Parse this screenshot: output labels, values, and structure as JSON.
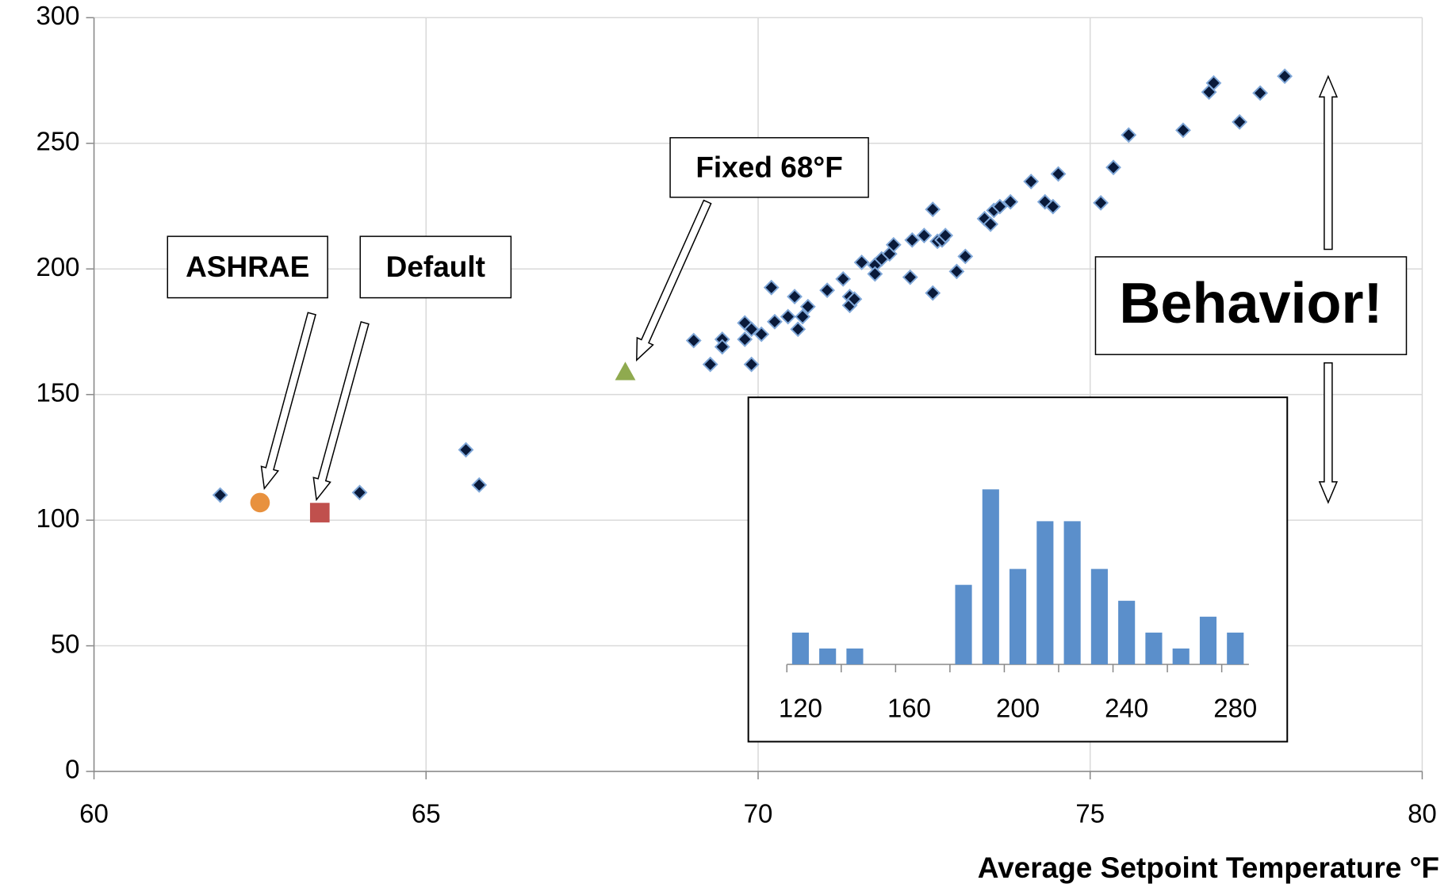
{
  "chart_data": [
    {
      "type": "scatter",
      "x_label": "Average Setpoint Temperature °F",
      "xlim": [
        60,
        80
      ],
      "xticks": [
        60,
        65,
        70,
        75,
        80
      ],
      "ylim": [
        0,
        300
      ],
      "yticks": [
        0,
        50,
        100,
        150,
        200,
        250,
        300
      ],
      "grid": true,
      "annotation": "Behavior!",
      "series": [
        {
          "color": "#0a1a3a",
          "marker": "diamond",
          "x": [
            61.9,
            64.0,
            65.6,
            65.8,
            69.03,
            69.28,
            69.46,
            69.46,
            69.8,
            69.8,
            69.9,
            69.9,
            70.05,
            70.2,
            70.25,
            70.45,
            70.55,
            70.6,
            70.67,
            70.75,
            71.04,
            71.28,
            71.38,
            71.38,
            71.45,
            71.56,
            71.76,
            71.76,
            71.86,
            71.98,
            72.04,
            72.29,
            72.32,
            72.5,
            72.63,
            72.63,
            72.7,
            72.77,
            72.82,
            72.99,
            73.12,
            73.41,
            73.5,
            73.55,
            73.64,
            73.8,
            74.11,
            74.32,
            74.44,
            74.52,
            75.16,
            75.35,
            75.58,
            76.4,
            76.79,
            76.86,
            77.25,
            77.56,
            77.93
          ],
          "y": [
            110,
            111,
            128,
            114,
            171.5,
            162,
            172,
            169,
            178.5,
            172,
            176,
            162,
            174,
            192.6,
            179,
            181,
            189,
            176,
            181,
            185,
            191.5,
            196,
            189,
            185.5,
            188,
            202.6,
            201.5,
            198,
            204,
            206,
            209.6,
            196.7,
            211.5,
            213.3,
            223.7,
            190.4,
            211,
            211.5,
            213.3,
            199,
            205,
            220,
            217.8,
            223.3,
            224.8,
            226.7,
            234.8,
            226.7,
            224.8,
            237.8,
            226.3,
            240.4,
            253.3,
            255.2,
            270.4,
            274,
            258.5,
            270,
            276.7
          ]
        },
        {
          "name": "ASHRAE",
          "color": "#e8913e",
          "marker": "circle",
          "x": [
            62.5
          ],
          "y": [
            107
          ]
        },
        {
          "name": "Default",
          "color": "#c0504d",
          "marker": "square",
          "x": [
            63.4
          ],
          "y": [
            103
          ]
        },
        {
          "name": "Fixed 68°F",
          "color": "#8faa4f",
          "marker": "triangle",
          "x": [
            68.0
          ],
          "y": [
            159
          ]
        }
      ]
    },
    {
      "type": "bar",
      "color": "#5b8fcb",
      "categories": [
        120,
        null,
        null,
        null,
        160,
        null,
        null,
        null,
        200,
        null,
        null,
        null,
        240,
        null,
        null,
        null,
        280
      ],
      "values": [
        2,
        1,
        1,
        0,
        0,
        0,
        5,
        11,
        6,
        9,
        9,
        6,
        4,
        2,
        1,
        3,
        2
      ]
    }
  ]
}
